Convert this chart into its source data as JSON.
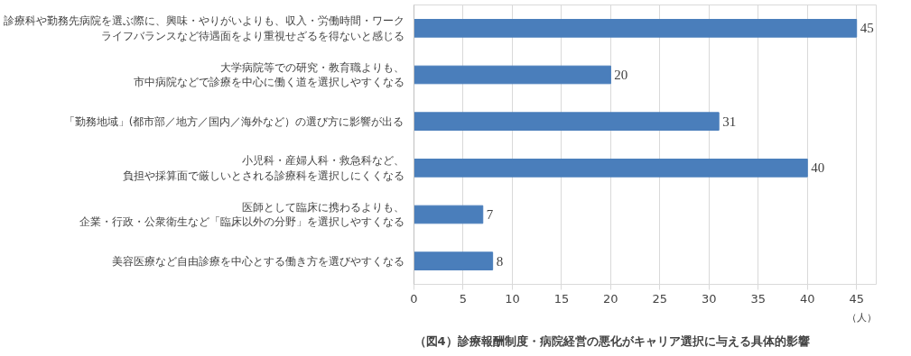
{
  "chart_data": {
    "type": "bar",
    "orientation": "horizontal",
    "title": "（図4）診療報酬制度・病院経営の悪化がキャリア選択に与える具体的影響",
    "xlabel": "（人）",
    "categories": [
      "診療科や勤務先病院を選ぶ際に、興味・やりがいよりも、収入・労働時間・ワークライフバランスなど待遇面をより重視せざるを得ないと感じる",
      "大学病院等での研究・教育職よりも、市中病院などで診療を中心に働く道を選択しやすくなる",
      "「勤務地域」(都市部／地方／国内／海外など）の選び方に影響が出る",
      "小児科・産婦人科・救急科など、負担や採算面で厳しいとされる診療科を選択しにくくなる",
      "医師として臨床に携わるよりも、企業・行政・公衆衛生など「臨床以外の分野」を選択しやすくなる",
      "美容医療など自由診療を中心とする働き方を選びやすくなる"
    ],
    "values": [
      45,
      20,
      31,
      40,
      7,
      8
    ],
    "color": "#4a7ebb",
    "data_labels": true,
    "xlim": [
      0,
      47
    ],
    "xticks": [
      0,
      5,
      10,
      15,
      20,
      25,
      30,
      35,
      40,
      45
    ],
    "grid": "x"
  }
}
